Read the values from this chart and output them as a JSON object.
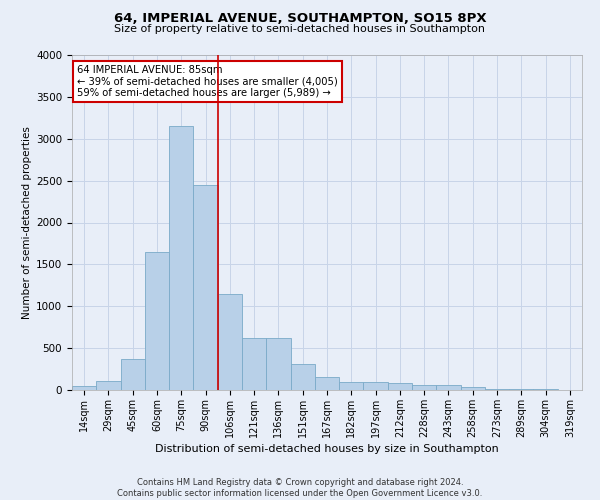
{
  "title": "64, IMPERIAL AVENUE, SOUTHAMPTON, SO15 8PX",
  "subtitle": "Size of property relative to semi-detached houses in Southampton",
  "xlabel": "Distribution of semi-detached houses by size in Southampton",
  "ylabel": "Number of semi-detached properties",
  "footnote1": "Contains HM Land Registry data © Crown copyright and database right 2024.",
  "footnote2": "Contains public sector information licensed under the Open Government Licence v3.0.",
  "categories": [
    "14sqm",
    "29sqm",
    "45sqm",
    "60sqm",
    "75sqm",
    "90sqm",
    "106sqm",
    "121sqm",
    "136sqm",
    "151sqm",
    "167sqm",
    "182sqm",
    "197sqm",
    "212sqm",
    "228sqm",
    "243sqm",
    "258sqm",
    "273sqm",
    "289sqm",
    "304sqm",
    "319sqm"
  ],
  "values": [
    50,
    110,
    370,
    1650,
    3150,
    2450,
    1150,
    620,
    620,
    310,
    160,
    100,
    100,
    80,
    65,
    55,
    40,
    15,
    10,
    10,
    5
  ],
  "bar_color": "#b8d0e8",
  "bar_edge_color": "#7aaac8",
  "grid_color": "#c8d4e8",
  "background_color": "#e8eef8",
  "annotation_box_color": "#ffffff",
  "annotation_box_edge": "#cc0000",
  "annotation_text1": "64 IMPERIAL AVENUE: 85sqm",
  "annotation_text2": "← 39% of semi-detached houses are smaller (4,005)",
  "annotation_text3": "59% of semi-detached houses are larger (5,989) →",
  "property_line_x": 5.5,
  "ylim": [
    0,
    4000
  ],
  "yticks": [
    0,
    500,
    1000,
    1500,
    2000,
    2500,
    3000,
    3500,
    4000
  ]
}
